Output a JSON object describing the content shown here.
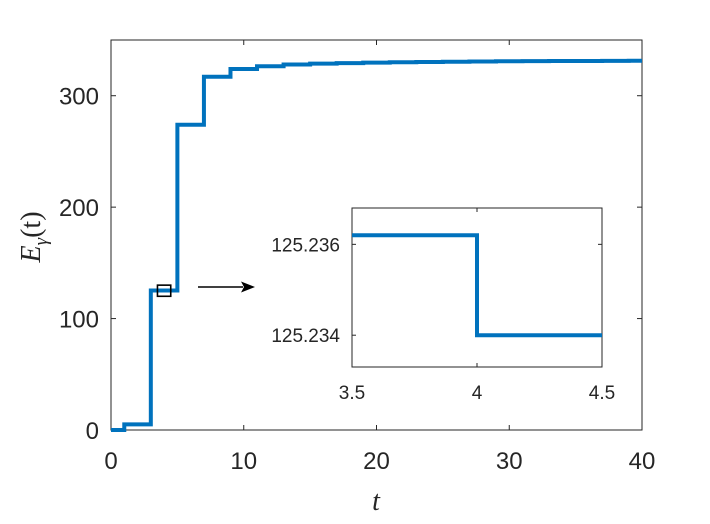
{
  "chart_data": [
    {
      "type": "line",
      "step": true,
      "xlabel": "t",
      "ylabel": "E_γ(t)",
      "ylabel_main": "E",
      "ylabel_sub": "γ",
      "ylabel_args": "(t)",
      "xlim": [
        0,
        40
      ],
      "ylim": [
        0,
        350
      ],
      "xticks": [
        0,
        10,
        20,
        30,
        40
      ],
      "yticks": [
        0,
        100,
        200,
        300
      ],
      "x_tick_labels": [
        "0",
        "10",
        "20",
        "30",
        "40"
      ],
      "y_tick_labels": [
        "0",
        "100",
        "200",
        "300"
      ],
      "grid": false,
      "series": [
        {
          "color": "#0072BD",
          "x": [
            0,
            1,
            1,
            3,
            3,
            5,
            5,
            7,
            7,
            9,
            9,
            11,
            11,
            13,
            13,
            15,
            15,
            17,
            17,
            19,
            19,
            21,
            21,
            23,
            23,
            25,
            25,
            27,
            27,
            29,
            29,
            31,
            31,
            33,
            33,
            35,
            35,
            37,
            37,
            39,
            39,
            40
          ],
          "y": [
            0,
            0,
            5,
            5,
            125.2,
            125.2,
            274,
            274,
            317,
            317,
            324,
            324,
            326.5,
            326.5,
            328,
            328,
            328.8,
            328.8,
            329.3,
            329.3,
            329.7,
            329.7,
            330,
            330,
            330.3,
            330.3,
            330.5,
            330.5,
            330.7,
            330.7,
            330.9,
            330.9,
            331,
            331,
            331.1,
            331.1,
            331.2,
            331.2,
            331.3,
            331.3,
            331.4,
            331.4
          ]
        }
      ],
      "annotation": {
        "type": "zoom-box",
        "region_x": [
          3.5,
          4.5
        ],
        "region_y": [
          120,
          130
        ]
      }
    },
    {
      "type": "line",
      "step": true,
      "role": "inset",
      "xlim": [
        3.5,
        4.5
      ],
      "ylim": [
        125.2333,
        125.2368
      ],
      "xticks": [
        3.5,
        4,
        4.5
      ],
      "yticks": [
        125.234,
        125.236
      ],
      "x_tick_labels": [
        "3.5",
        "4",
        "4.5"
      ],
      "y_tick_labels": [
        "125.234",
        "125.236"
      ],
      "grid": false,
      "series": [
        {
          "color": "#0072BD",
          "x": [
            3.5,
            4,
            4,
            4.5
          ],
          "y": [
            125.2362,
            125.2362,
            125.234,
            125.234
          ]
        }
      ]
    }
  ]
}
